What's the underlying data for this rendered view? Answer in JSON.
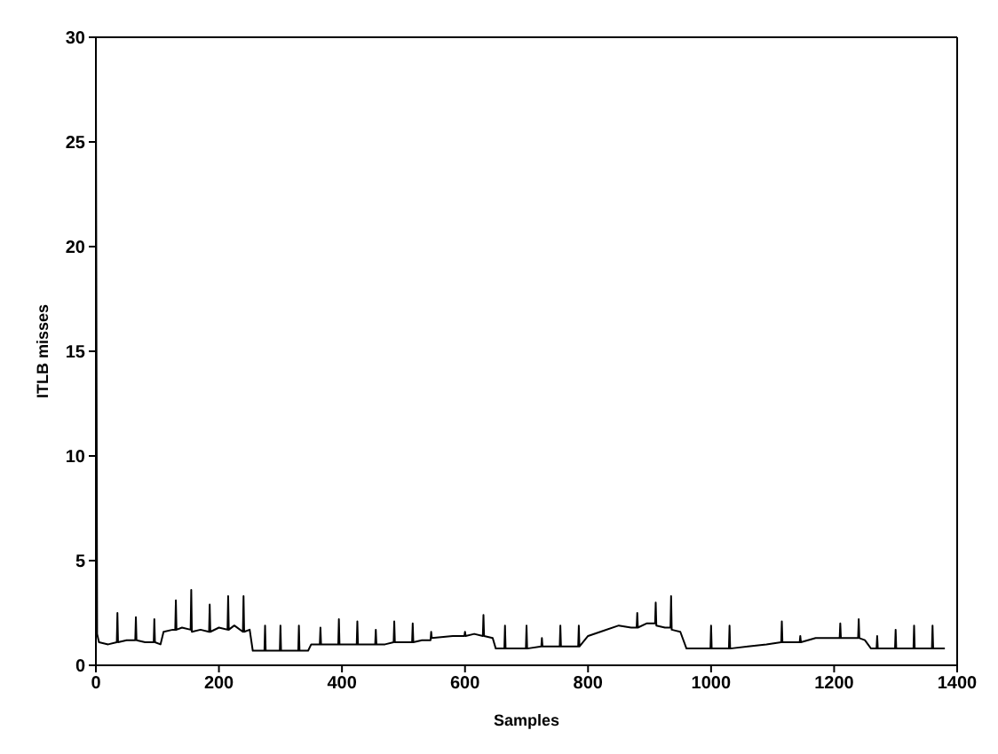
{
  "chart_data": {
    "type": "line",
    "xlabel": "Samples",
    "ylabel": "ITLB misses",
    "xlim": [
      0,
      1400
    ],
    "xticks": [
      0,
      200,
      400,
      600,
      800,
      1000,
      1200,
      1400
    ],
    "ylim": [
      0,
      30
    ],
    "yticks": [
      0,
      5,
      10,
      15,
      20,
      25,
      30
    ],
    "marker": "none",
    "line_style": "solid",
    "series": [
      {
        "color": "#000000",
        "x": [
          0,
          2,
          5,
          20,
          34,
          35,
          36,
          50,
          64,
          65,
          66,
          80,
          94,
          95,
          96,
          105,
          110,
          125,
          129,
          130,
          131,
          140,
          154,
          155,
          156,
          170,
          184,
          185,
          186,
          200,
          214,
          215,
          216,
          225,
          239,
          240,
          241,
          250,
          255,
          274,
          275,
          276,
          299,
          300,
          301,
          329,
          330,
          331,
          345,
          350,
          364,
          365,
          366,
          394,
          395,
          396,
          424,
          425,
          426,
          454,
          455,
          456,
          470,
          484,
          485,
          486,
          514,
          515,
          516,
          530,
          544,
          545,
          546,
          580,
          599,
          600,
          601,
          615,
          629,
          630,
          631,
          645,
          650,
          664,
          665,
          666,
          699,
          700,
          701,
          724,
          725,
          726,
          754,
          755,
          756,
          784,
          785,
          786,
          800,
          820,
          850,
          870,
          879,
          880,
          881,
          895,
          909,
          910,
          911,
          925,
          934,
          935,
          936,
          950,
          960,
          999,
          1000,
          1001,
          1029,
          1030,
          1031,
          1060,
          1090,
          1114,
          1115,
          1116,
          1144,
          1145,
          1146,
          1170,
          1190,
          1209,
          1210,
          1211,
          1239,
          1240,
          1241,
          1250,
          1260,
          1269,
          1270,
          1271,
          1299,
          1300,
          1301,
          1329,
          1330,
          1331,
          1359,
          1360,
          1361,
          1380
        ],
        "values": [
          28,
          1.5,
          1.1,
          1.0,
          1.1,
          2.5,
          1.1,
          1.2,
          1.2,
          2.3,
          1.2,
          1.1,
          1.1,
          2.2,
          1.1,
          1.0,
          1.6,
          1.7,
          1.7,
          3.1,
          1.7,
          1.8,
          1.7,
          3.6,
          1.6,
          1.7,
          1.6,
          2.9,
          1.6,
          1.8,
          1.7,
          3.3,
          1.7,
          1.9,
          1.6,
          3.3,
          1.6,
          1.7,
          0.7,
          0.7,
          1.9,
          0.7,
          0.7,
          1.9,
          0.7,
          0.7,
          1.9,
          0.7,
          0.7,
          1.0,
          1.0,
          1.8,
          1.0,
          1.0,
          2.2,
          1.0,
          1.0,
          2.1,
          1.0,
          1.0,
          1.7,
          1.0,
          1.0,
          1.1,
          2.1,
          1.1,
          1.1,
          2.0,
          1.1,
          1.2,
          1.2,
          1.6,
          1.3,
          1.4,
          1.4,
          1.6,
          1.4,
          1.5,
          1.4,
          2.4,
          1.4,
          1.3,
          0.8,
          0.8,
          1.9,
          0.8,
          0.8,
          1.9,
          0.8,
          0.9,
          1.3,
          0.9,
          0.9,
          1.9,
          0.9,
          0.9,
          1.9,
          0.9,
          1.4,
          1.6,
          1.9,
          1.8,
          1.8,
          2.5,
          1.8,
          2.0,
          2.0,
          3.0,
          1.9,
          1.8,
          1.8,
          3.3,
          1.7,
          1.6,
          0.8,
          0.8,
          1.9,
          0.8,
          0.8,
          1.9,
          0.8,
          0.9,
          1.0,
          1.1,
          2.1,
          1.1,
          1.1,
          1.4,
          1.1,
          1.3,
          1.3,
          1.3,
          2.0,
          1.3,
          1.3,
          2.2,
          1.3,
          1.2,
          0.8,
          0.8,
          1.4,
          0.8,
          0.8,
          1.7,
          0.8,
          0.8,
          1.9,
          0.8,
          0.8,
          1.9,
          0.8,
          0.8
        ]
      }
    ]
  }
}
